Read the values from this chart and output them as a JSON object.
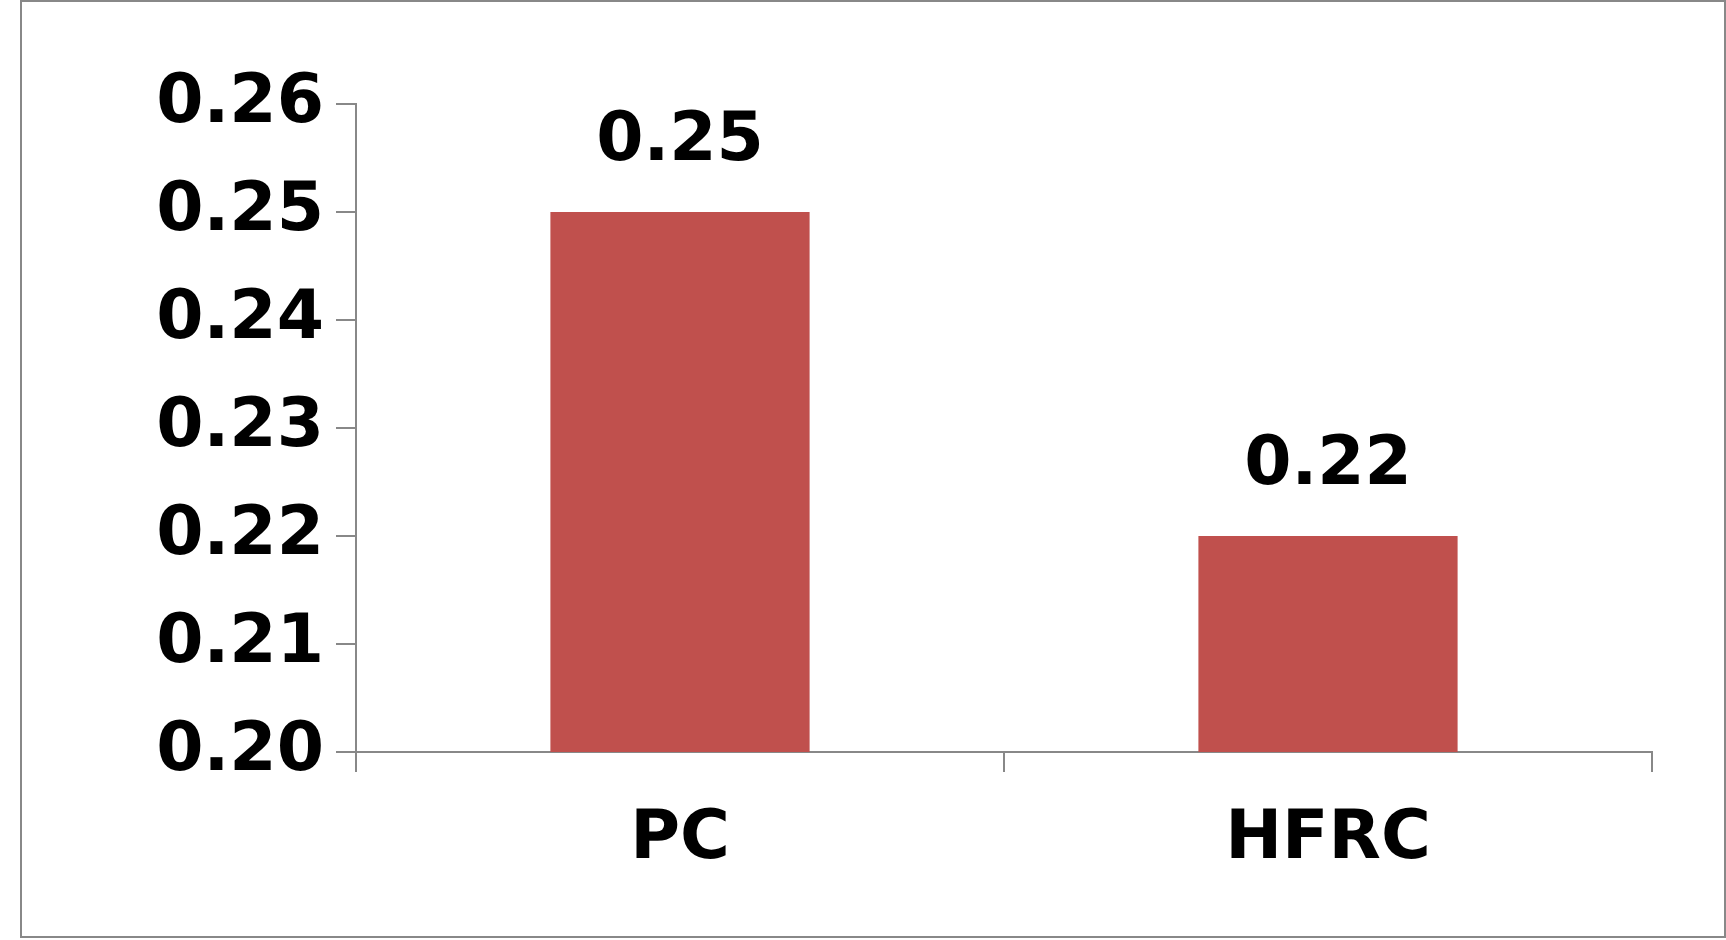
{
  "chart_data": {
    "type": "bar",
    "categories": [
      "PC",
      "HFRC"
    ],
    "values": [
      0.25,
      0.22
    ],
    "color": "#c0504d",
    "ylim": [
      0.2,
      0.26
    ],
    "yticks": [
      {
        "value": 0.2,
        "label": "0.20"
      },
      0.21,
      0.22,
      0.23,
      0.24,
      0.25,
      0.26
    ],
    "data_labels": true,
    "grid": false,
    "legend": false
  }
}
